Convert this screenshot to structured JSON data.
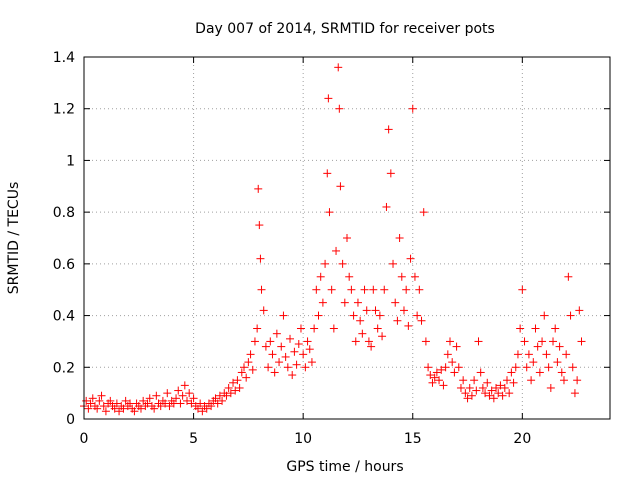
{
  "chart_data": {
    "type": "scatter",
    "title": "Day 007 of 2014, SRMTID for receiver pots",
    "xlabel": "GPS time / hours",
    "ylabel": "SRMTID / TECUs",
    "xlim": [
      0,
      24
    ],
    "ylim": [
      0,
      1.4
    ],
    "xticks": [
      0,
      5,
      10,
      15,
      20
    ],
    "xtick_labels": [
      "0",
      "5",
      "10",
      "15",
      "20"
    ],
    "yticks": [
      0,
      0.2,
      0.4,
      0.6,
      0.8,
      1.0,
      1.2,
      1.4
    ],
    "ytick_labels": [
      "0",
      "0.2",
      "0.4",
      "0.6",
      "0.8",
      "1",
      "1.2",
      "1.4"
    ],
    "grid": true,
    "marker": "+",
    "marker_color": "#ff0000",
    "series": [
      {
        "name": "SRMTID",
        "points": [
          [
            0.0,
            0.05
          ],
          [
            0.1,
            0.07
          ],
          [
            0.2,
            0.04
          ],
          [
            0.3,
            0.06
          ],
          [
            0.4,
            0.08
          ],
          [
            0.5,
            0.05
          ],
          [
            0.6,
            0.04
          ],
          [
            0.7,
            0.07
          ],
          [
            0.8,
            0.09
          ],
          [
            0.9,
            0.05
          ],
          [
            1.0,
            0.03
          ],
          [
            1.1,
            0.06
          ],
          [
            1.2,
            0.07
          ],
          [
            1.3,
            0.05
          ],
          [
            1.4,
            0.04
          ],
          [
            1.5,
            0.06
          ],
          [
            1.6,
            0.03
          ],
          [
            1.7,
            0.05
          ],
          [
            1.8,
            0.04
          ],
          [
            1.9,
            0.07
          ],
          [
            2.0,
            0.05
          ],
          [
            2.1,
            0.06
          ],
          [
            2.2,
            0.04
          ],
          [
            2.3,
            0.03
          ],
          [
            2.4,
            0.06
          ],
          [
            2.5,
            0.05
          ],
          [
            2.6,
            0.04
          ],
          [
            2.7,
            0.07
          ],
          [
            2.8,
            0.05
          ],
          [
            2.9,
            0.06
          ],
          [
            3.0,
            0.08
          ],
          [
            3.1,
            0.05
          ],
          [
            3.2,
            0.04
          ],
          [
            3.3,
            0.09
          ],
          [
            3.4,
            0.06
          ],
          [
            3.5,
            0.05
          ],
          [
            3.6,
            0.07
          ],
          [
            3.7,
            0.06
          ],
          [
            3.8,
            0.1
          ],
          [
            3.9,
            0.05
          ],
          [
            4.0,
            0.07
          ],
          [
            4.1,
            0.06
          ],
          [
            4.2,
            0.08
          ],
          [
            4.3,
            0.11
          ],
          [
            4.4,
            0.06
          ],
          [
            4.5,
            0.09
          ],
          [
            4.6,
            0.13
          ],
          [
            4.7,
            0.07
          ],
          [
            4.8,
            0.1
          ],
          [
            4.9,
            0.06
          ],
          [
            5.0,
            0.08
          ],
          [
            5.1,
            0.05
          ],
          [
            5.2,
            0.04
          ],
          [
            5.3,
            0.06
          ],
          [
            5.4,
            0.03
          ],
          [
            5.5,
            0.05
          ],
          [
            5.6,
            0.04
          ],
          [
            5.7,
            0.06
          ],
          [
            5.8,
            0.05
          ],
          [
            5.9,
            0.07
          ],
          [
            6.0,
            0.08
          ],
          [
            6.1,
            0.06
          ],
          [
            6.2,
            0.09
          ],
          [
            6.3,
            0.07
          ],
          [
            6.4,
            0.1
          ],
          [
            6.5,
            0.09
          ],
          [
            6.6,
            0.12
          ],
          [
            6.7,
            0.1
          ],
          [
            6.8,
            0.14
          ],
          [
            6.9,
            0.11
          ],
          [
            7.0,
            0.15
          ],
          [
            7.1,
            0.12
          ],
          [
            7.2,
            0.18
          ],
          [
            7.3,
            0.2
          ],
          [
            7.4,
            0.16
          ],
          [
            7.5,
            0.22
          ],
          [
            7.6,
            0.25
          ],
          [
            7.7,
            0.19
          ],
          [
            7.8,
            0.3
          ],
          [
            7.9,
            0.35
          ],
          [
            7.95,
            0.89
          ],
          [
            8.0,
            0.75
          ],
          [
            8.05,
            0.62
          ],
          [
            8.1,
            0.5
          ],
          [
            8.2,
            0.42
          ],
          [
            8.3,
            0.28
          ],
          [
            8.4,
            0.2
          ],
          [
            8.5,
            0.3
          ],
          [
            8.6,
            0.25
          ],
          [
            8.7,
            0.18
          ],
          [
            8.8,
            0.33
          ],
          [
            8.9,
            0.22
          ],
          [
            9.0,
            0.28
          ],
          [
            9.1,
            0.4
          ],
          [
            9.2,
            0.24
          ],
          [
            9.3,
            0.2
          ],
          [
            9.4,
            0.31
          ],
          [
            9.5,
            0.17
          ],
          [
            9.6,
            0.26
          ],
          [
            9.7,
            0.21
          ],
          [
            9.8,
            0.29
          ],
          [
            9.9,
            0.35
          ],
          [
            10.0,
            0.25
          ],
          [
            10.1,
            0.2
          ],
          [
            10.2,
            0.3
          ],
          [
            10.3,
            0.27
          ],
          [
            10.4,
            0.22
          ],
          [
            10.5,
            0.35
          ],
          [
            10.6,
            0.5
          ],
          [
            10.7,
            0.4
          ],
          [
            10.8,
            0.55
          ],
          [
            10.9,
            0.45
          ],
          [
            11.0,
            0.6
          ],
          [
            11.1,
            0.95
          ],
          [
            11.15,
            1.24
          ],
          [
            11.2,
            0.8
          ],
          [
            11.3,
            0.5
          ],
          [
            11.4,
            0.35
          ],
          [
            11.5,
            0.65
          ],
          [
            11.6,
            1.36
          ],
          [
            11.65,
            1.2
          ],
          [
            11.7,
            0.9
          ],
          [
            11.8,
            0.6
          ],
          [
            11.9,
            0.45
          ],
          [
            12.0,
            0.7
          ],
          [
            12.1,
            0.55
          ],
          [
            12.2,
            0.5
          ],
          [
            12.3,
            0.4
          ],
          [
            12.4,
            0.3
          ],
          [
            12.5,
            0.45
          ],
          [
            12.6,
            0.38
          ],
          [
            12.7,
            0.33
          ],
          [
            12.8,
            0.5
          ],
          [
            12.9,
            0.42
          ],
          [
            13.0,
            0.3
          ],
          [
            13.1,
            0.28
          ],
          [
            13.2,
            0.5
          ],
          [
            13.3,
            0.42
          ],
          [
            13.4,
            0.35
          ],
          [
            13.5,
            0.4
          ],
          [
            13.6,
            0.32
          ],
          [
            13.7,
            0.5
          ],
          [
            13.8,
            0.82
          ],
          [
            13.9,
            1.12
          ],
          [
            14.0,
            0.95
          ],
          [
            14.1,
            0.6
          ],
          [
            14.2,
            0.45
          ],
          [
            14.3,
            0.38
          ],
          [
            14.4,
            0.7
          ],
          [
            14.5,
            0.55
          ],
          [
            14.6,
            0.42
          ],
          [
            14.7,
            0.5
          ],
          [
            14.8,
            0.36
          ],
          [
            14.9,
            0.62
          ],
          [
            15.0,
            1.2
          ],
          [
            15.1,
            0.55
          ],
          [
            15.2,
            0.4
          ],
          [
            15.3,
            0.5
          ],
          [
            15.4,
            0.38
          ],
          [
            15.5,
            0.8
          ],
          [
            15.6,
            0.3
          ],
          [
            15.7,
            0.2
          ],
          [
            15.8,
            0.17
          ],
          [
            15.9,
            0.14
          ],
          [
            16.0,
            0.16
          ],
          [
            16.1,
            0.18
          ],
          [
            16.2,
            0.15
          ],
          [
            16.3,
            0.19
          ],
          [
            16.4,
            0.13
          ],
          [
            16.5,
            0.2
          ],
          [
            16.6,
            0.25
          ],
          [
            16.7,
            0.3
          ],
          [
            16.8,
            0.22
          ],
          [
            16.9,
            0.18
          ],
          [
            17.0,
            0.28
          ],
          [
            17.1,
            0.2
          ],
          [
            17.2,
            0.12
          ],
          [
            17.3,
            0.15
          ],
          [
            17.4,
            0.1
          ],
          [
            17.5,
            0.08
          ],
          [
            17.6,
            0.12
          ],
          [
            17.7,
            0.09
          ],
          [
            17.8,
            0.15
          ],
          [
            17.9,
            0.11
          ],
          [
            18.0,
            0.3
          ],
          [
            18.1,
            0.18
          ],
          [
            18.2,
            0.12
          ],
          [
            18.3,
            0.1
          ],
          [
            18.4,
            0.14
          ],
          [
            18.5,
            0.09
          ],
          [
            18.6,
            0.11
          ],
          [
            18.7,
            0.08
          ],
          [
            18.8,
            0.12
          ],
          [
            18.9,
            0.1
          ],
          [
            19.0,
            0.13
          ],
          [
            19.1,
            0.09
          ],
          [
            19.2,
            0.12
          ],
          [
            19.3,
            0.15
          ],
          [
            19.4,
            0.1
          ],
          [
            19.5,
            0.18
          ],
          [
            19.6,
            0.14
          ],
          [
            19.7,
            0.2
          ],
          [
            19.8,
            0.25
          ],
          [
            19.9,
            0.35
          ],
          [
            20.0,
            0.5
          ],
          [
            20.1,
            0.3
          ],
          [
            20.2,
            0.2
          ],
          [
            20.3,
            0.25
          ],
          [
            20.4,
            0.15
          ],
          [
            20.5,
            0.22
          ],
          [
            20.6,
            0.35
          ],
          [
            20.7,
            0.28
          ],
          [
            20.8,
            0.18
          ],
          [
            20.9,
            0.3
          ],
          [
            21.0,
            0.4
          ],
          [
            21.1,
            0.25
          ],
          [
            21.2,
            0.2
          ],
          [
            21.3,
            0.12
          ],
          [
            21.4,
            0.3
          ],
          [
            21.5,
            0.35
          ],
          [
            21.6,
            0.22
          ],
          [
            21.7,
            0.28
          ],
          [
            21.8,
            0.18
          ],
          [
            21.9,
            0.15
          ],
          [
            22.0,
            0.25
          ],
          [
            22.1,
            0.55
          ],
          [
            22.2,
            0.4
          ],
          [
            22.3,
            0.2
          ],
          [
            22.4,
            0.1
          ],
          [
            22.5,
            0.15
          ],
          [
            22.6,
            0.42
          ],
          [
            22.7,
            0.3
          ]
        ]
      }
    ]
  }
}
